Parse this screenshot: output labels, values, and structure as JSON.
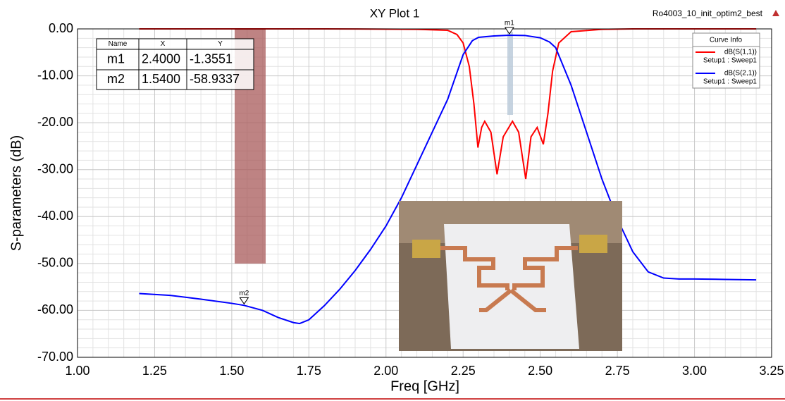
{
  "chart_data": {
    "type": "line",
    "title": "XY Plot 1",
    "design_name": "Ro4003_10_init_optim2_best",
    "x_label": "Freq [GHz]",
    "y_label": "S-parameters (dB)",
    "xlim": [
      1.0,
      3.25
    ],
    "ylim": [
      -70,
      0
    ],
    "xticks": [
      {
        "value": 1.0,
        "label": "1.00"
      },
      {
        "value": 1.25,
        "label": "1.25"
      },
      {
        "value": 1.5,
        "label": "1.50"
      },
      {
        "value": 1.75,
        "label": "1.75"
      },
      {
        "value": 2.0,
        "label": "2.00"
      },
      {
        "value": 2.25,
        "label": "2.25"
      },
      {
        "value": 2.5,
        "label": "2.50"
      },
      {
        "value": 2.75,
        "label": "2.75"
      },
      {
        "value": 3.0,
        "label": "3.00"
      },
      {
        "value": 3.25,
        "label": "3.25"
      }
    ],
    "yticks": [
      {
        "value": 0,
        "label": "0.00"
      },
      {
        "value": -10,
        "label": "-10.00"
      },
      {
        "value": -20,
        "label": "-20.00"
      },
      {
        "value": -30,
        "label": "-30.00"
      },
      {
        "value": -40,
        "label": "-40.00"
      },
      {
        "value": -50,
        "label": "-50.00"
      },
      {
        "value": -60,
        "label": "-60.00"
      },
      {
        "value": -70,
        "label": "-70.00"
      }
    ],
    "grid": true,
    "legend_title": "Curve Info",
    "series": [
      {
        "name": "dB(S(1,1))",
        "setup": "Setup1 : Sweep1",
        "color": "#ff0000",
        "x": [
          1.2,
          1.5,
          1.8,
          2.0,
          2.1,
          2.2,
          2.23,
          2.25,
          2.27,
          2.285,
          2.298,
          2.31,
          2.32,
          2.34,
          2.36,
          2.38,
          2.41,
          2.43,
          2.453,
          2.47,
          2.49,
          2.51,
          2.525,
          2.54,
          2.56,
          2.6,
          2.7,
          2.8,
          3.0,
          3.2
        ],
        "values": [
          0,
          0,
          0,
          -0.05,
          -0.1,
          -0.3,
          -1.2,
          -3,
          -8,
          -16,
          -25.3,
          -21,
          -19.7,
          -22,
          -31,
          -23,
          -19.7,
          -22,
          -32,
          -23,
          -21,
          -24.6,
          -18,
          -9,
          -3,
          -0.6,
          -0.1,
          0,
          0,
          0
        ]
      },
      {
        "name": "dB(S(2,1))",
        "setup": "Setup1 : Sweep1",
        "color": "#0000ff",
        "x": [
          1.2,
          1.3,
          1.4,
          1.5,
          1.54,
          1.6,
          1.65,
          1.7,
          1.72,
          1.75,
          1.8,
          1.85,
          1.9,
          1.95,
          2.0,
          2.05,
          2.1,
          2.15,
          2.2,
          2.25,
          2.28,
          2.3,
          2.35,
          2.4,
          2.45,
          2.5,
          2.53,
          2.55,
          2.6,
          2.65,
          2.7,
          2.75,
          2.8,
          2.85,
          2.9,
          2.95,
          3.0,
          3.1,
          3.2
        ],
        "values": [
          -56.4,
          -56.8,
          -57.6,
          -58.5,
          -58.93,
          -60,
          -61.5,
          -62.6,
          -62.8,
          -62,
          -59,
          -55.5,
          -51.5,
          -47,
          -42,
          -36,
          -29,
          -22,
          -15,
          -5.5,
          -2.5,
          -1.8,
          -1.5,
          -1.36,
          -1.4,
          -1.9,
          -2.8,
          -4,
          -12,
          -22,
          -32,
          -40.5,
          -47.5,
          -51.8,
          -53.1,
          -53.3,
          -53.3,
          -53.4,
          -53.5
        ]
      }
    ],
    "markers": {
      "columns": [
        "Name",
        "X",
        "Y"
      ],
      "rows": [
        [
          "m1",
          "2.4000",
          "-1.3551"
        ],
        [
          "m2",
          "1.5400",
          "-58.9337"
        ]
      ]
    }
  }
}
